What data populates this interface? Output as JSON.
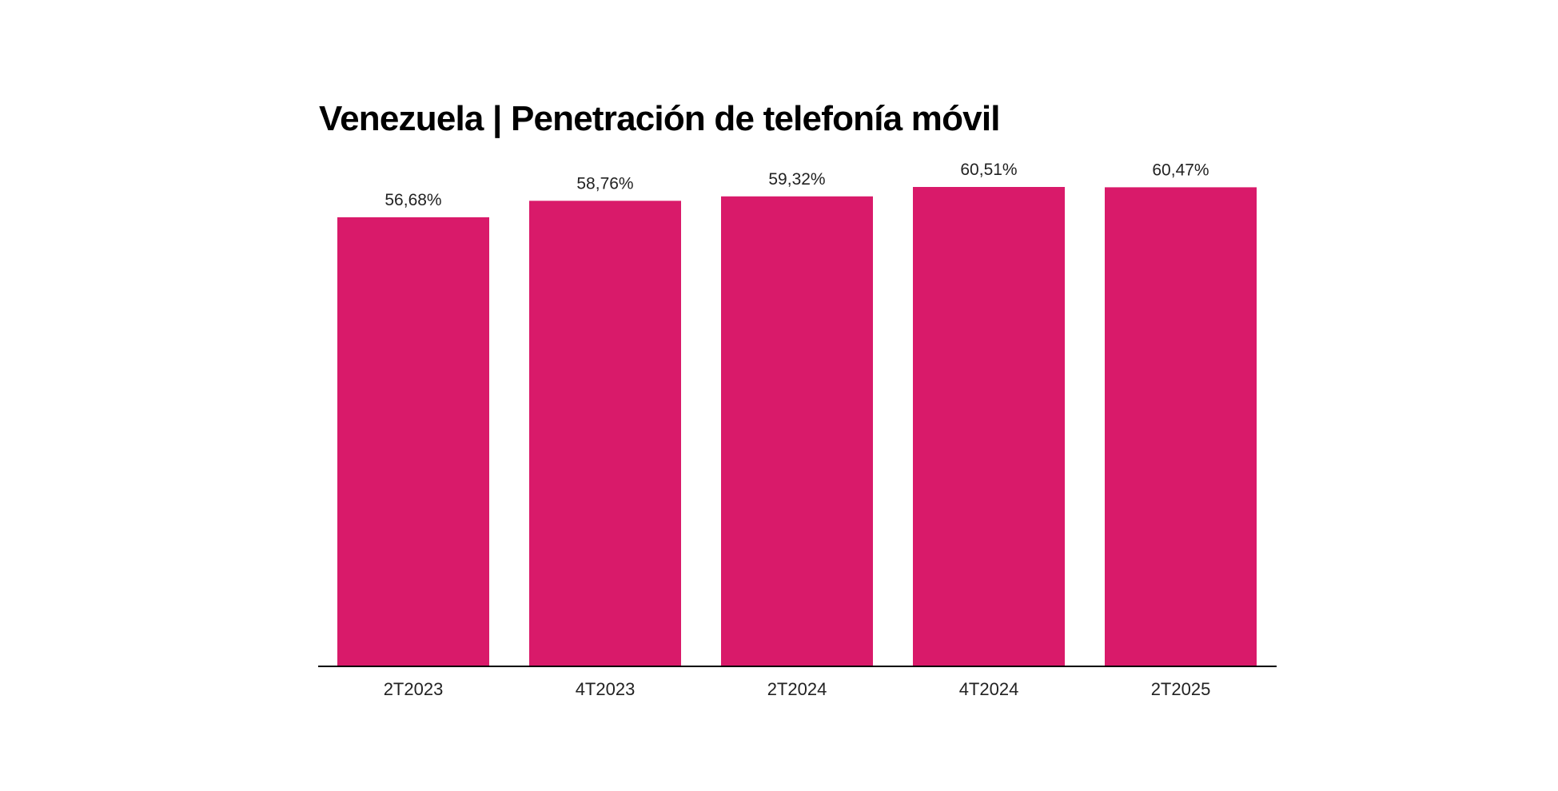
{
  "chart_data": {
    "type": "bar",
    "title": "Venezuela | Penetración de telefonía móvil",
    "categories": [
      "2T2023",
      "4T2023",
      "2T2024",
      "4T2024",
      "2T2025"
    ],
    "values": [
      56.68,
      58.76,
      59.32,
      60.51,
      60.47
    ],
    "value_labels": [
      "56,68%",
      "58,76%",
      "59,32%",
      "60,51%",
      "60,47%"
    ],
    "xlabel": "",
    "ylabel": "",
    "ylim": [
      0,
      60.51
    ],
    "grid": false,
    "legend": "none",
    "bar_color": "#d91a6a",
    "axis_color": "#000000"
  }
}
